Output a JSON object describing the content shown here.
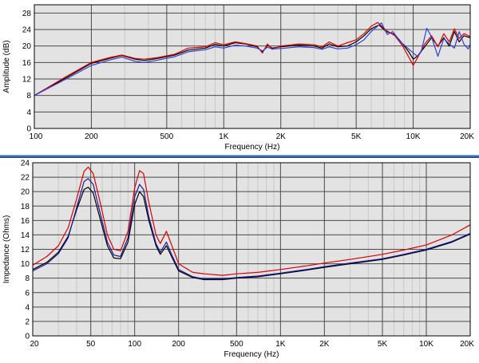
{
  "chart_data": [
    {
      "type": "line",
      "xlabel": "Frequency (Hz)",
      "ylabel": "Amplitude (dB)",
      "xscale": "log",
      "xlim": [
        100,
        20000
      ],
      "ylim": [
        0,
        30
      ],
      "xticks": [
        100,
        200,
        500,
        1000,
        2000,
        5000,
        10000,
        20000
      ],
      "xtick_labels": [
        "100",
        "200",
        "500",
        "1K",
        "2K",
        "5K",
        "10K",
        "20K"
      ],
      "yticks": [
        0,
        4,
        8,
        12,
        16,
        20,
        24,
        28
      ],
      "ytick_labels": [
        "0",
        "4",
        "8",
        "12",
        "16",
        "20",
        "24",
        "28"
      ],
      "grid": true,
      "series": [
        {
          "color": "#000000",
          "points": [
            [
              100,
              8
            ],
            [
              150,
              12.5
            ],
            [
              200,
              15.8
            ],
            [
              250,
              17
            ],
            [
              290,
              17.7
            ],
            [
              340,
              16.8
            ],
            [
              380,
              16.5
            ],
            [
              450,
              17
            ],
            [
              550,
              17.8
            ],
            [
              650,
              19
            ],
            [
              800,
              19.5
            ],
            [
              900,
              20.4
            ],
            [
              1000,
              20
            ],
            [
              1150,
              20.8
            ],
            [
              1300,
              20.5
            ],
            [
              1500,
              19.8
            ],
            [
              1600,
              18.5
            ],
            [
              1700,
              20.2
            ],
            [
              1800,
              19.5
            ],
            [
              2000,
              19.8
            ],
            [
              2500,
              20.2
            ],
            [
              3000,
              20
            ],
            [
              3300,
              19.5
            ],
            [
              3600,
              20.5
            ],
            [
              4000,
              19.8
            ],
            [
              4500,
              20
            ],
            [
              5000,
              21
            ],
            [
              5500,
              22.5
            ],
            [
              6000,
              24.2
            ],
            [
              6600,
              25.1
            ],
            [
              7200,
              23.5
            ],
            [
              8000,
              22.8
            ],
            [
              8800,
              20.5
            ],
            [
              9500,
              18.5
            ],
            [
              10000,
              16.8
            ],
            [
              10500,
              17.5
            ],
            [
              11500,
              19.8
            ],
            [
              12500,
              22
            ],
            [
              13500,
              20
            ],
            [
              14500,
              22
            ],
            [
              15500,
              20
            ],
            [
              16500,
              23.5
            ],
            [
              17500,
              21
            ],
            [
              18500,
              22.5
            ],
            [
              20000,
              22
            ]
          ]
        },
        {
          "color": "#dd0000",
          "points": [
            [
              100,
              8
            ],
            [
              150,
              12.8
            ],
            [
              200,
              16
            ],
            [
              250,
              17.2
            ],
            [
              290,
              17.8
            ],
            [
              340,
              17
            ],
            [
              380,
              16.8
            ],
            [
              450,
              17.2
            ],
            [
              550,
              18
            ],
            [
              650,
              19.5
            ],
            [
              800,
              19.8
            ],
            [
              900,
              20.8
            ],
            [
              1000,
              20.3
            ],
            [
              1150,
              21
            ],
            [
              1300,
              20.6
            ],
            [
              1500,
              20
            ],
            [
              1600,
              18.3
            ],
            [
              1700,
              20.5
            ],
            [
              1800,
              19.2
            ],
            [
              2000,
              20
            ],
            [
              2500,
              20.5
            ],
            [
              3000,
              20.3
            ],
            [
              3300,
              19.8
            ],
            [
              3600,
              21
            ],
            [
              4000,
              20
            ],
            [
              4500,
              20.8
            ],
            [
              5000,
              21.5
            ],
            [
              5500,
              23
            ],
            [
              6000,
              24.8
            ],
            [
              6500,
              25.7
            ],
            [
              7200,
              23.8
            ],
            [
              8000,
              22.5
            ],
            [
              8800,
              20
            ],
            [
              9500,
              17.2
            ],
            [
              10000,
              15.3
            ],
            [
              10500,
              17
            ],
            [
              11500,
              20.5
            ],
            [
              12500,
              22.5
            ],
            [
              13500,
              19.8
            ],
            [
              14500,
              23
            ],
            [
              15500,
              21
            ],
            [
              16500,
              24.2
            ],
            [
              17500,
              21.8
            ],
            [
              18500,
              23
            ],
            [
              20000,
              22.3
            ]
          ]
        },
        {
          "color": "#2e3fd8",
          "points": [
            [
              100,
              8
            ],
            [
              150,
              12.2
            ],
            [
              200,
              15.3
            ],
            [
              250,
              16.6
            ],
            [
              290,
              17.3
            ],
            [
              340,
              16.3
            ],
            [
              380,
              16
            ],
            [
              450,
              16.6
            ],
            [
              550,
              17.4
            ],
            [
              650,
              18.6
            ],
            [
              800,
              19.1
            ],
            [
              900,
              19.8
            ],
            [
              1000,
              19.5
            ],
            [
              1150,
              20.2
            ],
            [
              1300,
              20
            ],
            [
              1500,
              19.5
            ],
            [
              1600,
              18.8
            ],
            [
              1700,
              19.7
            ],
            [
              1800,
              19.3
            ],
            [
              2000,
              19.4
            ],
            [
              2500,
              19.8
            ],
            [
              3000,
              19.6
            ],
            [
              3300,
              19.2
            ],
            [
              3600,
              19.8
            ],
            [
              4000,
              19.3
            ],
            [
              4500,
              19.5
            ],
            [
              5000,
              20.3
            ],
            [
              5500,
              21.5
            ],
            [
              6000,
              23.5
            ],
            [
              6800,
              25.6
            ],
            [
              7300,
              22.8
            ],
            [
              7800,
              23.5
            ],
            [
              8500,
              21.2
            ],
            [
              9500,
              19.2
            ],
            [
              10500,
              17.5
            ],
            [
              11000,
              18.5
            ],
            [
              11800,
              24.3
            ],
            [
              12500,
              22.2
            ],
            [
              13500,
              17.5
            ],
            [
              14500,
              21.8
            ],
            [
              15500,
              20.5
            ],
            [
              16500,
              19.5
            ],
            [
              17500,
              23.5
            ],
            [
              18500,
              20.5
            ],
            [
              19500,
              19.3
            ],
            [
              20000,
              20.5
            ]
          ]
        }
      ]
    },
    {
      "type": "line",
      "xlabel": "Frequency (Hz)",
      "ylabel": "Impedance (Ohms)",
      "xscale": "log",
      "xlim": [
        20,
        20000
      ],
      "ylim": [
        0,
        24
      ],
      "xticks": [
        20,
        50,
        100,
        200,
        500,
        1000,
        2000,
        5000,
        10000,
        20000
      ],
      "xtick_labels": [
        "20",
        "50",
        "100",
        "200",
        "500",
        "1K",
        "2K",
        "5K",
        "10K",
        "20K"
      ],
      "yticks": [
        0,
        2,
        4,
        6,
        8,
        10,
        12,
        14,
        16,
        18,
        20,
        22,
        24
      ],
      "ytick_labels": [
        "0",
        "2",
        "4",
        "6",
        "8",
        "10",
        "12",
        "14",
        "16",
        "18",
        "20",
        "22",
        "24"
      ],
      "grid": true,
      "series": [
        {
          "color": "#dd0000",
          "points": [
            [
              20,
              9.8
            ],
            [
              25,
              11
            ],
            [
              30,
              12.5
            ],
            [
              35,
              15
            ],
            [
              40,
              19
            ],
            [
              45,
              22.8
            ],
            [
              48,
              23.4
            ],
            [
              52,
              22.5
            ],
            [
              58,
              18.5
            ],
            [
              65,
              14
            ],
            [
              72,
              12
            ],
            [
              80,
              11.8
            ],
            [
              90,
              14.5
            ],
            [
              100,
              20.5
            ],
            [
              108,
              22.9
            ],
            [
              115,
              22.5
            ],
            [
              125,
              18.5
            ],
            [
              140,
              14
            ],
            [
              150,
              12.8
            ],
            [
              165,
              14.5
            ],
            [
              180,
              12.5
            ],
            [
              200,
              10
            ],
            [
              250,
              8.8
            ],
            [
              300,
              8.6
            ],
            [
              400,
              8.4
            ],
            [
              500,
              8.6
            ],
            [
              700,
              8.8
            ],
            [
              1000,
              9.2
            ],
            [
              1500,
              9.7
            ],
            [
              2000,
              10.1
            ],
            [
              3000,
              10.6
            ],
            [
              5000,
              11.3
            ],
            [
              7000,
              11.9
            ],
            [
              10000,
              12.6
            ],
            [
              15000,
              14
            ],
            [
              20000,
              15.4
            ]
          ]
        },
        {
          "color": "#000000",
          "points": [
            [
              20,
              9.2
            ],
            [
              25,
              10.2
            ],
            [
              30,
              11.6
            ],
            [
              35,
              13.8
            ],
            [
              40,
              17.5
            ],
            [
              45,
              20.3
            ],
            [
              48,
              20.6
            ],
            [
              52,
              19.8
            ],
            [
              58,
              16.2
            ],
            [
              65,
              12.5
            ],
            [
              72,
              10.8
            ],
            [
              80,
              10.7
            ],
            [
              90,
              13
            ],
            [
              100,
              18.2
            ],
            [
              108,
              20
            ],
            [
              115,
              19.3
            ],
            [
              125,
              16
            ],
            [
              140,
              12.5
            ],
            [
              150,
              11.3
            ],
            [
              165,
              12.5
            ],
            [
              180,
              10.9
            ],
            [
              200,
              9
            ],
            [
              250,
              8.1
            ],
            [
              300,
              7.8
            ],
            [
              400,
              7.8
            ],
            [
              500,
              8
            ],
            [
              700,
              8.2
            ],
            [
              1000,
              8.6
            ],
            [
              1500,
              9.1
            ],
            [
              2000,
              9.5
            ],
            [
              3000,
              10
            ],
            [
              5000,
              10.6
            ],
            [
              7000,
              11.2
            ],
            [
              10000,
              11.9
            ],
            [
              15000,
              13
            ],
            [
              20000,
              14.1
            ]
          ]
        },
        {
          "color": "#1a1a9a",
          "points": [
            [
              20,
              9
            ],
            [
              25,
              10
            ],
            [
              30,
              11.4
            ],
            [
              35,
              13.6
            ],
            [
              40,
              17.8
            ],
            [
              45,
              21.4
            ],
            [
              48,
              21.8
            ],
            [
              52,
              21
            ],
            [
              58,
              17
            ],
            [
              65,
              13
            ],
            [
              72,
              11.2
            ],
            [
              80,
              11
            ],
            [
              90,
              13.6
            ],
            [
              100,
              19.3
            ],
            [
              108,
              21
            ],
            [
              115,
              20.3
            ],
            [
              125,
              16.5
            ],
            [
              140,
              12.8
            ],
            [
              150,
              11.6
            ],
            [
              165,
              13
            ],
            [
              180,
              11.2
            ],
            [
              200,
              9.2
            ],
            [
              250,
              8.2
            ],
            [
              300,
              7.9
            ],
            [
              400,
              7.9
            ],
            [
              500,
              8.1
            ],
            [
              700,
              8.3
            ],
            [
              1000,
              8.7
            ],
            [
              1500,
              9.2
            ],
            [
              2000,
              9.6
            ],
            [
              3000,
              10.1
            ],
            [
              5000,
              10.7
            ],
            [
              7000,
              11.3
            ],
            [
              10000,
              12
            ],
            [
              15000,
              13.1
            ],
            [
              20000,
              14.2
            ]
          ]
        }
      ]
    }
  ]
}
